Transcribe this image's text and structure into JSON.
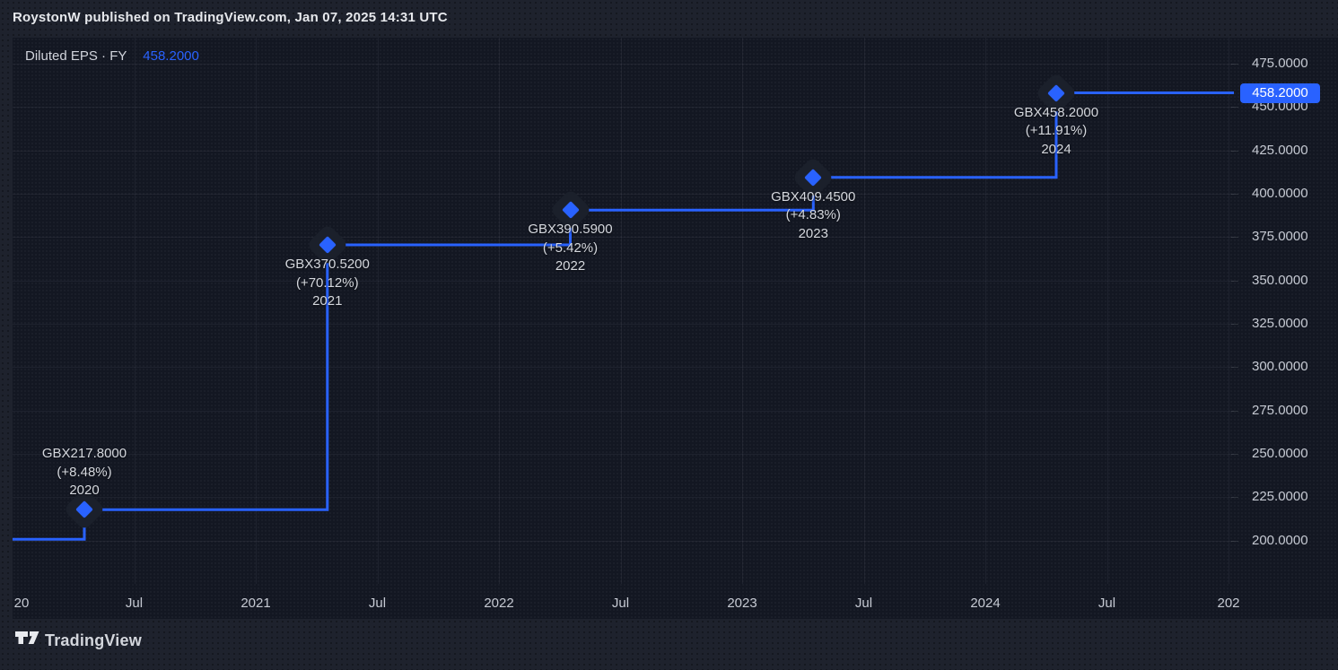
{
  "header": {
    "title": "RoystonW published on TradingView.com, Jan 07, 2025 14:31 UTC"
  },
  "legend": {
    "series_label": "Diluted EPS · FY",
    "value": "458.2000"
  },
  "price_badge": {
    "value": "458.2000"
  },
  "footer": {
    "brand": "TradingView"
  },
  "colors": {
    "accent_blue": "#2962FF",
    "panel_bg": "#131722",
    "outer_bg": "#1E222D",
    "label_text": "#D5D8DE",
    "axis_text": "#C6CAD3"
  },
  "chart_data": {
    "type": "line",
    "style": "step-after",
    "title": "Diluted EPS · FY",
    "unit": "GBX",
    "legend_position": "top-left",
    "grid": true,
    "x": [
      2020,
      2021,
      2022,
      2023,
      2024
    ],
    "values": [
      217.8,
      370.52,
      390.59,
      409.45,
      458.2
    ],
    "leading_value": 200.8,
    "last_price": 458.2,
    "ylim": [
      175,
      490
    ],
    "points": [
      {
        "year": "2020",
        "value": 217.8,
        "value_label": "GBX217.8000",
        "change_label": "(+8.48%)",
        "label_position": "above"
      },
      {
        "year": "2021",
        "value": 370.52,
        "value_label": "GBX370.5200",
        "change_label": "(+70.12%)",
        "label_position": "below"
      },
      {
        "year": "2022",
        "value": 390.59,
        "value_label": "GBX390.5900",
        "change_label": "(+5.42%)",
        "label_position": "below"
      },
      {
        "year": "2023",
        "value": 409.45,
        "value_label": "GBX409.4500",
        "change_label": "(+4.83%)",
        "label_position": "below"
      },
      {
        "year": "2024",
        "value": 458.2,
        "value_label": "GBX458.2000",
        "change_label": "(+11.91%)",
        "label_position": "below"
      }
    ],
    "y_ticks": [
      {
        "value": 475,
        "label": "475.0000"
      },
      {
        "value": 450,
        "label": "450.0000"
      },
      {
        "value": 425,
        "label": "425.0000"
      },
      {
        "value": 400,
        "label": "400.0000"
      },
      {
        "value": 375,
        "label": "375.0000"
      },
      {
        "value": 350,
        "label": "350.0000"
      },
      {
        "value": 325,
        "label": "325.0000"
      },
      {
        "value": 300,
        "label": "300.0000"
      },
      {
        "value": 275,
        "label": "275.0000"
      },
      {
        "value": 250,
        "label": "250.0000"
      },
      {
        "value": 225,
        "label": "225.0000"
      },
      {
        "value": 200,
        "label": "200.0000"
      }
    ],
    "x_ticks": [
      "20",
      "Jul",
      "2021",
      "Jul",
      "2022",
      "Jul",
      "2023",
      "Jul",
      "2024",
      "Jul",
      "202"
    ]
  }
}
